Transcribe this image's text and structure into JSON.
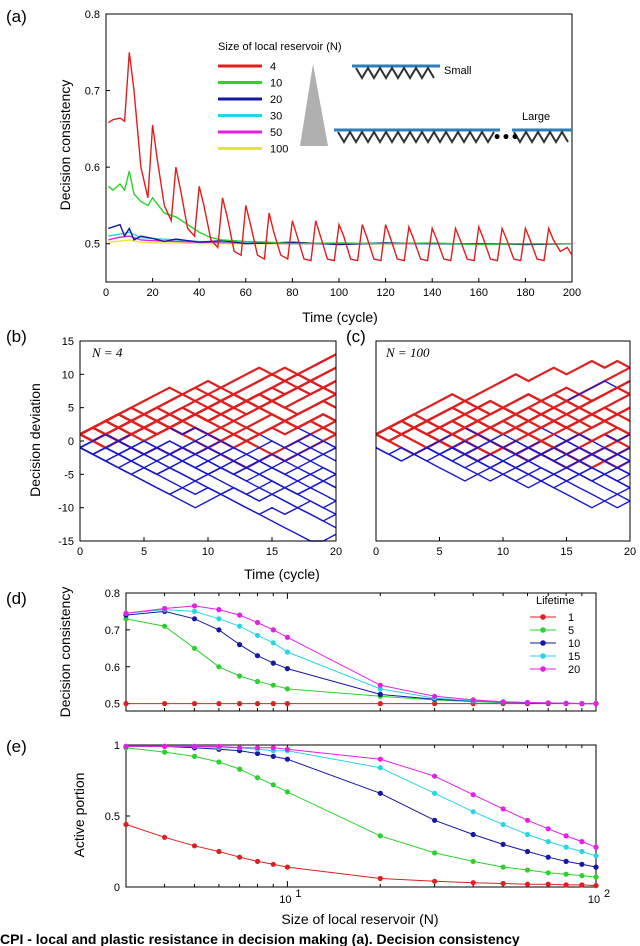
{
  "caption_fragment": "CPI - local and plastic resistance in decision making (a). Decision consistency",
  "chart_data": [
    {
      "id": "a",
      "panel_label": "(a)",
      "type": "line",
      "title": "",
      "xlabel": "Time (cycle)",
      "ylabel": "Decision consistency",
      "xlim": [
        0,
        200
      ],
      "ylim": [
        0.45,
        0.8
      ],
      "xticks": [
        0,
        20,
        40,
        60,
        80,
        100,
        120,
        140,
        160,
        180,
        200
      ],
      "yticks": [
        0.5,
        0.6,
        0.7,
        0.8
      ],
      "ytick_labels": [
        "0.5",
        "0.6",
        "0.7",
        "0.8"
      ],
      "legend_title": "Size of local reservoir (N)",
      "inset_small_label": "Small",
      "inset_large_label": "Large",
      "series": [
        {
          "name": "4",
          "color": "#e11e1e",
          "x": [
            1,
            3,
            6,
            8,
            10,
            12,
            15,
            18,
            20,
            22,
            25,
            28,
            30,
            32,
            35,
            38,
            40,
            42,
            45,
            48,
            50,
            52,
            55,
            58,
            60,
            62,
            65,
            68,
            70,
            72,
            75,
            78,
            80,
            82,
            85,
            88,
            90,
            92,
            95,
            98,
            100,
            102,
            105,
            108,
            110,
            112,
            115,
            118,
            120,
            122,
            125,
            128,
            130,
            132,
            135,
            138,
            140,
            142,
            145,
            148,
            150,
            152,
            155,
            158,
            160,
            162,
            165,
            168,
            170,
            172,
            175,
            178,
            180,
            182,
            185,
            188,
            190,
            192,
            195,
            198,
            200
          ],
          "y": [
            0.658,
            0.662,
            0.664,
            0.66,
            0.75,
            0.7,
            0.6,
            0.56,
            0.655,
            0.61,
            0.55,
            0.53,
            0.6,
            0.57,
            0.52,
            0.51,
            0.575,
            0.55,
            0.505,
            0.495,
            0.56,
            0.535,
            0.49,
            0.485,
            0.55,
            0.525,
            0.485,
            0.48,
            0.54,
            0.515,
            0.485,
            0.48,
            0.53,
            0.51,
            0.48,
            0.478,
            0.53,
            0.51,
            0.48,
            0.478,
            0.525,
            0.51,
            0.48,
            0.478,
            0.525,
            0.508,
            0.48,
            0.478,
            0.525,
            0.508,
            0.48,
            0.478,
            0.522,
            0.506,
            0.48,
            0.478,
            0.52,
            0.505,
            0.48,
            0.478,
            0.52,
            0.505,
            0.48,
            0.478,
            0.522,
            0.506,
            0.48,
            0.478,
            0.52,
            0.505,
            0.48,
            0.478,
            0.52,
            0.505,
            0.48,
            0.478,
            0.52,
            0.505,
            0.49,
            0.495,
            0.485
          ]
        },
        {
          "name": "10",
          "color": "#2bd22b",
          "x": [
            1,
            3,
            6,
            8,
            10,
            12,
            15,
            18,
            20,
            25,
            30,
            35,
            40,
            45,
            50,
            60,
            70,
            80,
            100,
            120,
            140,
            160,
            180,
            200
          ],
          "y": [
            0.575,
            0.57,
            0.578,
            0.57,
            0.595,
            0.565,
            0.555,
            0.55,
            0.56,
            0.54,
            0.535,
            0.525,
            0.515,
            0.508,
            0.505,
            0.503,
            0.502,
            0.5,
            0.501,
            0.5,
            0.501,
            0.499,
            0.5,
            0.5
          ]
        },
        {
          "name": "20",
          "color": "#1616a8",
          "x": [
            1,
            3,
            6,
            8,
            10,
            12,
            15,
            20,
            25,
            30,
            40,
            50,
            60,
            80,
            100,
            120,
            140,
            160,
            180,
            200
          ],
          "y": [
            0.52,
            0.522,
            0.525,
            0.51,
            0.52,
            0.505,
            0.51,
            0.507,
            0.503,
            0.506,
            0.502,
            0.504,
            0.5,
            0.502,
            0.499,
            0.501,
            0.5,
            0.5,
            0.499,
            0.5
          ]
        },
        {
          "name": "30",
          "color": "#27d6e6",
          "x": [
            1,
            5,
            10,
            15,
            20,
            30,
            40,
            60,
            80,
            100,
            120,
            140,
            160,
            180,
            200
          ],
          "y": [
            0.51,
            0.512,
            0.515,
            0.508,
            0.507,
            0.505,
            0.503,
            0.502,
            0.501,
            0.5,
            0.501,
            0.5,
            0.499,
            0.5,
            0.5
          ]
        },
        {
          "name": "50",
          "color": "#e61ee6",
          "x": [
            1,
            5,
            10,
            15,
            20,
            30,
            40,
            60,
            80,
            100,
            120,
            140,
            160,
            180,
            200
          ],
          "y": [
            0.505,
            0.508,
            0.51,
            0.505,
            0.504,
            0.503,
            0.502,
            0.501,
            0.5,
            0.5,
            0.5,
            0.5,
            0.5,
            0.5,
            0.5
          ]
        },
        {
          "name": "100",
          "color": "#e8e822",
          "x": [
            1,
            5,
            10,
            15,
            20,
            30,
            40,
            60,
            80,
            100,
            120,
            140,
            160,
            180,
            200
          ],
          "y": [
            0.502,
            0.503,
            0.505,
            0.502,
            0.501,
            0.501,
            0.5,
            0.5,
            0.5,
            0.5,
            0.5,
            0.5,
            0.5,
            0.5,
            0.5
          ]
        }
      ]
    },
    {
      "id": "b",
      "panel_label": "(b)",
      "type": "line",
      "annotation": "N = 4",
      "xlabel": "",
      "ylabel": "Decision deviation",
      "xlim": [
        0,
        20
      ],
      "ylim": [
        -15,
        15
      ],
      "xticks": [
        0,
        5,
        10,
        15,
        20
      ],
      "yticks": [
        -15,
        -10,
        -5,
        0,
        5,
        10,
        15
      ],
      "walk_colors": [
        "#e11e1e",
        "#1a1ad0"
      ],
      "walk_count": 40,
      "seed": 7
    },
    {
      "id": "c",
      "panel_label": "(c)",
      "type": "line",
      "annotation": "N = 100",
      "xlabel": "",
      "xlim": [
        0,
        20
      ],
      "ylim": [
        -15,
        15
      ],
      "xticks": [
        0,
        5,
        10,
        15,
        20
      ],
      "walk_colors": [
        "#e11e1e",
        "#1a1ad0"
      ],
      "walk_count": 40
    },
    {
      "id": "d",
      "panel_label": "(d)",
      "type": "line",
      "xscale": "log",
      "xlabel": "",
      "ylabel": "Decision consistency",
      "xlim": [
        3,
        100
      ],
      "ylim": [
        0.48,
        0.8
      ],
      "yticks": [
        0.5,
        0.6,
        0.7,
        0.8
      ],
      "ytick_labels": [
        "0.5",
        "0.6",
        "0.7",
        "0.8"
      ],
      "legend_title": "Lifetime",
      "x": [
        3,
        4,
        5,
        6,
        7,
        8,
        9,
        10,
        20,
        30,
        40,
        50,
        60,
        70,
        80,
        90,
        100
      ],
      "series": [
        {
          "name": "1",
          "color": "#e11e1e",
          "values": [
            0.5,
            0.5,
            0.5,
            0.5,
            0.5,
            0.5,
            0.5,
            0.5,
            0.5,
            0.5,
            0.5,
            0.5,
            0.5,
            0.5,
            0.5,
            0.5,
            0.5
          ]
        },
        {
          "name": "5",
          "color": "#2bd22b",
          "values": [
            0.73,
            0.71,
            0.65,
            0.6,
            0.575,
            0.56,
            0.55,
            0.54,
            0.52,
            0.51,
            0.505,
            0.503,
            0.502,
            0.501,
            0.501,
            0.5,
            0.5
          ]
        },
        {
          "name": "10",
          "color": "#1616a8",
          "values": [
            0.74,
            0.75,
            0.73,
            0.7,
            0.66,
            0.63,
            0.61,
            0.595,
            0.525,
            0.512,
            0.507,
            0.504,
            0.502,
            0.501,
            0.501,
            0.5,
            0.5
          ]
        },
        {
          "name": "15",
          "color": "#27d6e6",
          "values": [
            0.745,
            0.755,
            0.75,
            0.73,
            0.71,
            0.685,
            0.665,
            0.64,
            0.54,
            0.515,
            0.508,
            0.505,
            0.503,
            0.502,
            0.501,
            0.5,
            0.5
          ]
        },
        {
          "name": "20",
          "color": "#e61ee6",
          "values": [
            0.745,
            0.758,
            0.765,
            0.755,
            0.74,
            0.72,
            0.7,
            0.68,
            0.55,
            0.52,
            0.51,
            0.505,
            0.503,
            0.502,
            0.501,
            0.5,
            0.5
          ]
        }
      ]
    },
    {
      "id": "e",
      "panel_label": "(e)",
      "type": "line",
      "xscale": "log",
      "xlabel": "Size of local reservoir (N)",
      "ylabel": "Active portion",
      "xlim": [
        3,
        100
      ],
      "ylim": [
        0,
        1
      ],
      "yticks": [
        0,
        0.5,
        1
      ],
      "ytick_labels": [
        "0",
        "0.5",
        "1"
      ],
      "xtick_labels": [
        "10",
        "10"
      ],
      "xtick_exponents": [
        "1",
        "2"
      ],
      "x": [
        3,
        4,
        5,
        6,
        7,
        8,
        9,
        10,
        20,
        30,
        40,
        50,
        60,
        70,
        80,
        90,
        100
      ],
      "series": [
        {
          "name": "1",
          "color": "#e11e1e",
          "values": [
            0.44,
            0.35,
            0.29,
            0.25,
            0.21,
            0.18,
            0.16,
            0.14,
            0.06,
            0.04,
            0.03,
            0.025,
            0.02,
            0.02,
            0.015,
            0.015,
            0.01
          ]
        },
        {
          "name": "5",
          "color": "#2bd22b",
          "values": [
            0.98,
            0.95,
            0.92,
            0.88,
            0.83,
            0.77,
            0.72,
            0.67,
            0.36,
            0.24,
            0.18,
            0.14,
            0.12,
            0.1,
            0.09,
            0.08,
            0.07
          ]
        },
        {
          "name": "10",
          "color": "#1616a8",
          "values": [
            0.99,
            0.99,
            0.98,
            0.97,
            0.96,
            0.94,
            0.92,
            0.9,
            0.66,
            0.47,
            0.37,
            0.3,
            0.25,
            0.21,
            0.18,
            0.16,
            0.14
          ]
        },
        {
          "name": "15",
          "color": "#27d6e6",
          "values": [
            0.99,
            0.99,
            0.99,
            0.98,
            0.98,
            0.97,
            0.96,
            0.96,
            0.84,
            0.66,
            0.53,
            0.44,
            0.37,
            0.32,
            0.28,
            0.25,
            0.22
          ]
        },
        {
          "name": "20",
          "color": "#e61ee6",
          "values": [
            0.99,
            0.99,
            0.99,
            0.99,
            0.98,
            0.98,
            0.98,
            0.97,
            0.9,
            0.78,
            0.65,
            0.55,
            0.47,
            0.41,
            0.36,
            0.32,
            0.28
          ]
        }
      ]
    }
  ],
  "bc_shared_xlabel": "Time (cycle)"
}
